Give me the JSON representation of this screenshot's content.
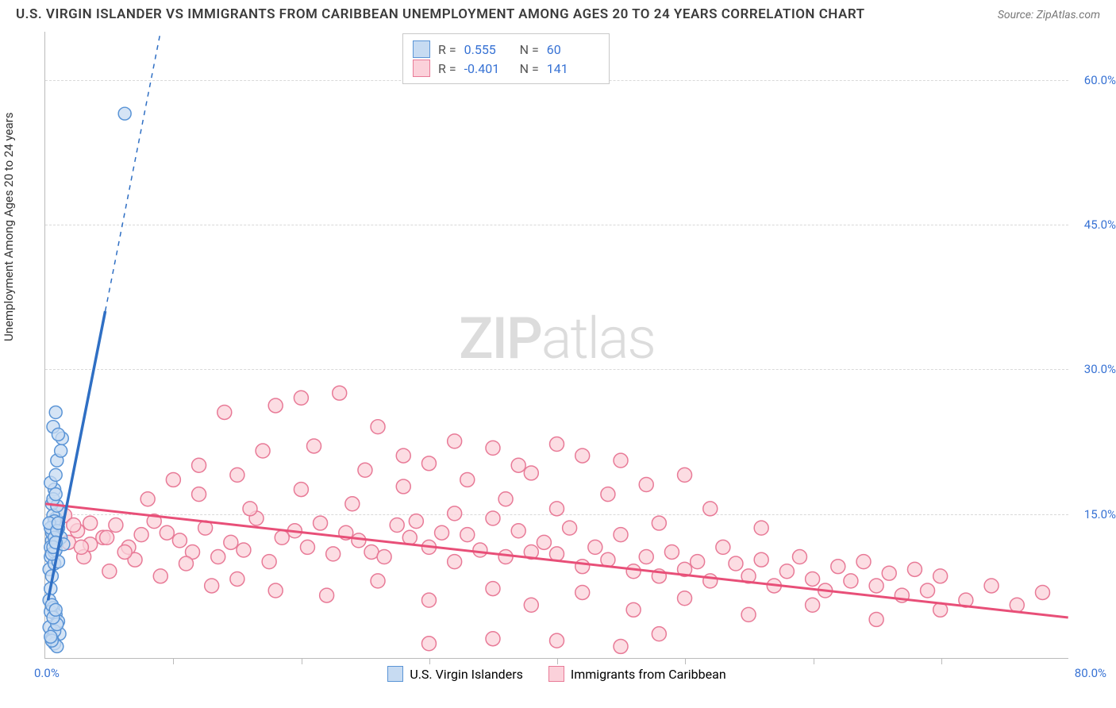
{
  "header": {
    "title": "U.S. VIRGIN ISLANDER VS IMMIGRANTS FROM CARIBBEAN UNEMPLOYMENT AMONG AGES 20 TO 24 YEARS CORRELATION CHART",
    "source_prefix": "Source:",
    "source_name": "ZipAtlas.com"
  },
  "axes": {
    "y_label": "Unemployment Among Ages 20 to 24 years",
    "x_min": 0,
    "x_max": 80,
    "y_min": 0,
    "y_max": 65,
    "y_ticks": [
      15,
      30,
      45,
      60
    ],
    "y_tick_labels": [
      "15.0%",
      "30.0%",
      "45.0%",
      "60.0%"
    ],
    "x_tick_positions": [
      10,
      20,
      30,
      40,
      50,
      60,
      70
    ],
    "x_origin_label": "0.0%",
    "x_max_label": "80.0%"
  },
  "watermark": {
    "part1": "ZIP",
    "part2": "atlas"
  },
  "series": {
    "blue": {
      "name": "U.S. Virgin Islanders",
      "color_fill": "#c7dbf2",
      "color_stroke": "#5a94d6",
      "line_color": "#2f6fc4",
      "r_label": "R =",
      "r_value": "0.555",
      "n_label": "N =",
      "n_value": "60",
      "regression": {
        "x1": 0.2,
        "y1": 6,
        "x2": 9.0,
        "y2": 65,
        "solid_until_y": 36
      },
      "marker_radius": 8,
      "points": [
        [
          0.4,
          10.5
        ],
        [
          0.5,
          12.2
        ],
        [
          0.6,
          13.8
        ],
        [
          0.7,
          11.0
        ],
        [
          0.3,
          9.2
        ],
        [
          0.8,
          14.5
        ],
        [
          0.9,
          12.0
        ],
        [
          1.0,
          13.5
        ],
        [
          1.1,
          15.2
        ],
        [
          0.5,
          16.0
        ],
        [
          0.6,
          14.8
        ],
        [
          0.7,
          17.5
        ],
        [
          0.4,
          18.2
        ],
        [
          0.8,
          19.0
        ],
        [
          0.9,
          20.5
        ],
        [
          1.2,
          21.5
        ],
        [
          1.3,
          22.8
        ],
        [
          0.6,
          24.0
        ],
        [
          0.8,
          25.5
        ],
        [
          1.0,
          23.2
        ],
        [
          0.7,
          9.8
        ],
        [
          0.5,
          8.5
        ],
        [
          0.4,
          7.2
        ],
        [
          0.3,
          6.0
        ],
        [
          0.6,
          5.2
        ],
        [
          0.8,
          4.5
        ],
        [
          1.0,
          3.8
        ],
        [
          1.1,
          2.5
        ],
        [
          0.5,
          2.0
        ],
        [
          0.7,
          1.5
        ],
        [
          0.9,
          1.2
        ],
        [
          0.4,
          11.5
        ],
        [
          0.6,
          12.8
        ],
        [
          0.8,
          11.2
        ],
        [
          1.0,
          10.0
        ],
        [
          0.5,
          13.0
        ],
        [
          0.7,
          14.2
        ],
        [
          0.9,
          15.8
        ],
        [
          0.6,
          16.5
        ],
        [
          0.8,
          17.0
        ],
        [
          0.4,
          13.5
        ],
        [
          0.3,
          14.0
        ],
        [
          1.2,
          12.5
        ],
        [
          1.4,
          11.8
        ],
        [
          0.5,
          10.8
        ],
        [
          0.7,
          12.5
        ],
        [
          0.9,
          13.2
        ],
        [
          0.6,
          11.5
        ],
        [
          0.8,
          12.0
        ],
        [
          1.0,
          14.0
        ],
        [
          6.2,
          56.5
        ],
        [
          0.4,
          4.8
        ],
        [
          0.5,
          5.5
        ],
        [
          0.3,
          3.2
        ],
        [
          0.7,
          2.8
        ],
        [
          0.9,
          3.5
        ],
        [
          0.6,
          4.2
        ],
        [
          0.8,
          5.0
        ],
        [
          0.5,
          1.8
        ],
        [
          0.4,
          2.2
        ]
      ]
    },
    "pink": {
      "name": "Immigrants from Caribbean",
      "color_fill": "#fbd1da",
      "color_stroke": "#e87a97",
      "line_color": "#e84f78",
      "r_label": "R =",
      "r_value": "-0.401",
      "n_label": "N =",
      "n_value": "141",
      "regression": {
        "x1": 0,
        "y1": 16.0,
        "x2": 80,
        "y2": 4.2
      },
      "marker_radius": 9,
      "points": [
        [
          1.5,
          14.8
        ],
        [
          2.5,
          13.2
        ],
        [
          3.5,
          14.0
        ],
        [
          4.5,
          12.5
        ],
        [
          5.5,
          13.8
        ],
        [
          6.5,
          11.5
        ],
        [
          7.5,
          12.8
        ],
        [
          8.5,
          14.2
        ],
        [
          9.5,
          13.0
        ],
        [
          10.5,
          12.2
        ],
        [
          11.5,
          11.0
        ],
        [
          12.5,
          13.5
        ],
        [
          13.5,
          10.5
        ],
        [
          14.5,
          12.0
        ],
        [
          15.5,
          11.2
        ],
        [
          16.5,
          14.5
        ],
        [
          17.5,
          10.0
        ],
        [
          18.5,
          12.5
        ],
        [
          19.5,
          13.2
        ],
        [
          20.5,
          11.5
        ],
        [
          21.5,
          14.0
        ],
        [
          22.5,
          10.8
        ],
        [
          23.5,
          13.0
        ],
        [
          24.5,
          12.2
        ],
        [
          25.5,
          11.0
        ],
        [
          26.5,
          10.5
        ],
        [
          27.5,
          13.8
        ],
        [
          28.5,
          12.5
        ],
        [
          29.0,
          14.2
        ],
        [
          30.0,
          11.5
        ],
        [
          31.0,
          13.0
        ],
        [
          32.0,
          10.0
        ],
        [
          33.0,
          12.8
        ],
        [
          34.0,
          11.2
        ],
        [
          35.0,
          14.5
        ],
        [
          36.0,
          10.5
        ],
        [
          37.0,
          13.2
        ],
        [
          38.0,
          11.0
        ],
        [
          39.0,
          12.0
        ],
        [
          40.0,
          10.8
        ],
        [
          41.0,
          13.5
        ],
        [
          42.0,
          9.5
        ],
        [
          43.0,
          11.5
        ],
        [
          44.0,
          10.2
        ],
        [
          45.0,
          12.8
        ],
        [
          46.0,
          9.0
        ],
        [
          47.0,
          10.5
        ],
        [
          48.0,
          8.5
        ],
        [
          49.0,
          11.0
        ],
        [
          50.0,
          9.2
        ],
        [
          51.0,
          10.0
        ],
        [
          52.0,
          8.0
        ],
        [
          53.0,
          11.5
        ],
        [
          54.0,
          9.8
        ],
        [
          55.0,
          8.5
        ],
        [
          56.0,
          10.2
        ],
        [
          57.0,
          7.5
        ],
        [
          58.0,
          9.0
        ],
        [
          59.0,
          10.5
        ],
        [
          60.0,
          8.2
        ],
        [
          61.0,
          7.0
        ],
        [
          62.0,
          9.5
        ],
        [
          63.0,
          8.0
        ],
        [
          64.0,
          10.0
        ],
        [
          65.0,
          7.5
        ],
        [
          66.0,
          8.8
        ],
        [
          67.0,
          6.5
        ],
        [
          68.0,
          9.2
        ],
        [
          69.0,
          7.0
        ],
        [
          70.0,
          8.5
        ],
        [
          72.0,
          6.0
        ],
        [
          74.0,
          7.5
        ],
        [
          76.0,
          5.5
        ],
        [
          78.0,
          6.8
        ],
        [
          14.0,
          25.5
        ],
        [
          18.0,
          26.2
        ],
        [
          20.0,
          27.0
        ],
        [
          23.0,
          27.5
        ],
        [
          26.0,
          24.0
        ],
        [
          10.0,
          18.5
        ],
        [
          12.0,
          20.0
        ],
        [
          15.0,
          19.0
        ],
        [
          17.0,
          21.5
        ],
        [
          21.0,
          22.0
        ],
        [
          25.0,
          19.5
        ],
        [
          28.0,
          21.0
        ],
        [
          30.0,
          20.2
        ],
        [
          32.0,
          22.5
        ],
        [
          35.0,
          21.8
        ],
        [
          37.0,
          20.0
        ],
        [
          40.0,
          22.2
        ],
        [
          42.0,
          21.0
        ],
        [
          45.0,
          20.5
        ],
        [
          50.0,
          19.0
        ],
        [
          3.0,
          10.5
        ],
        [
          5.0,
          9.0
        ],
        [
          7.0,
          10.2
        ],
        [
          9.0,
          8.5
        ],
        [
          11.0,
          9.8
        ],
        [
          13.0,
          7.5
        ],
        [
          15.0,
          8.2
        ],
        [
          18.0,
          7.0
        ],
        [
          22.0,
          6.5
        ],
        [
          26.0,
          8.0
        ],
        [
          30.0,
          6.0
        ],
        [
          35.0,
          7.2
        ],
        [
          38.0,
          5.5
        ],
        [
          42.0,
          6.8
        ],
        [
          46.0,
          5.0
        ],
        [
          50.0,
          6.2
        ],
        [
          55.0,
          4.5
        ],
        [
          60.0,
          5.5
        ],
        [
          65.0,
          4.0
        ],
        [
          70.0,
          5.0
        ],
        [
          8.0,
          16.5
        ],
        [
          12.0,
          17.0
        ],
        [
          16.0,
          15.5
        ],
        [
          20.0,
          17.5
        ],
        [
          24.0,
          16.0
        ],
        [
          28.0,
          17.8
        ],
        [
          32.0,
          15.0
        ],
        [
          36.0,
          16.5
        ],
        [
          40.0,
          15.5
        ],
        [
          44.0,
          17.0
        ],
        [
          48.0,
          14.0
        ],
        [
          52.0,
          15.5
        ],
        [
          56.0,
          13.5
        ],
        [
          30.0,
          1.5
        ],
        [
          35.0,
          2.0
        ],
        [
          40.0,
          1.8
        ],
        [
          45.0,
          1.2
        ],
        [
          48.0,
          2.5
        ],
        [
          33.0,
          18.5
        ],
        [
          38.0,
          19.2
        ],
        [
          47.0,
          18.0
        ],
        [
          3.5,
          11.8
        ],
        [
          4.8,
          12.5
        ],
        [
          6.2,
          11.0
        ],
        [
          2.2,
          13.8
        ],
        [
          1.8,
          12.0
        ],
        [
          2.8,
          11.5
        ]
      ]
    }
  },
  "colors": {
    "grid": "#d9d9d9",
    "axis_text": "#3772d4"
  }
}
